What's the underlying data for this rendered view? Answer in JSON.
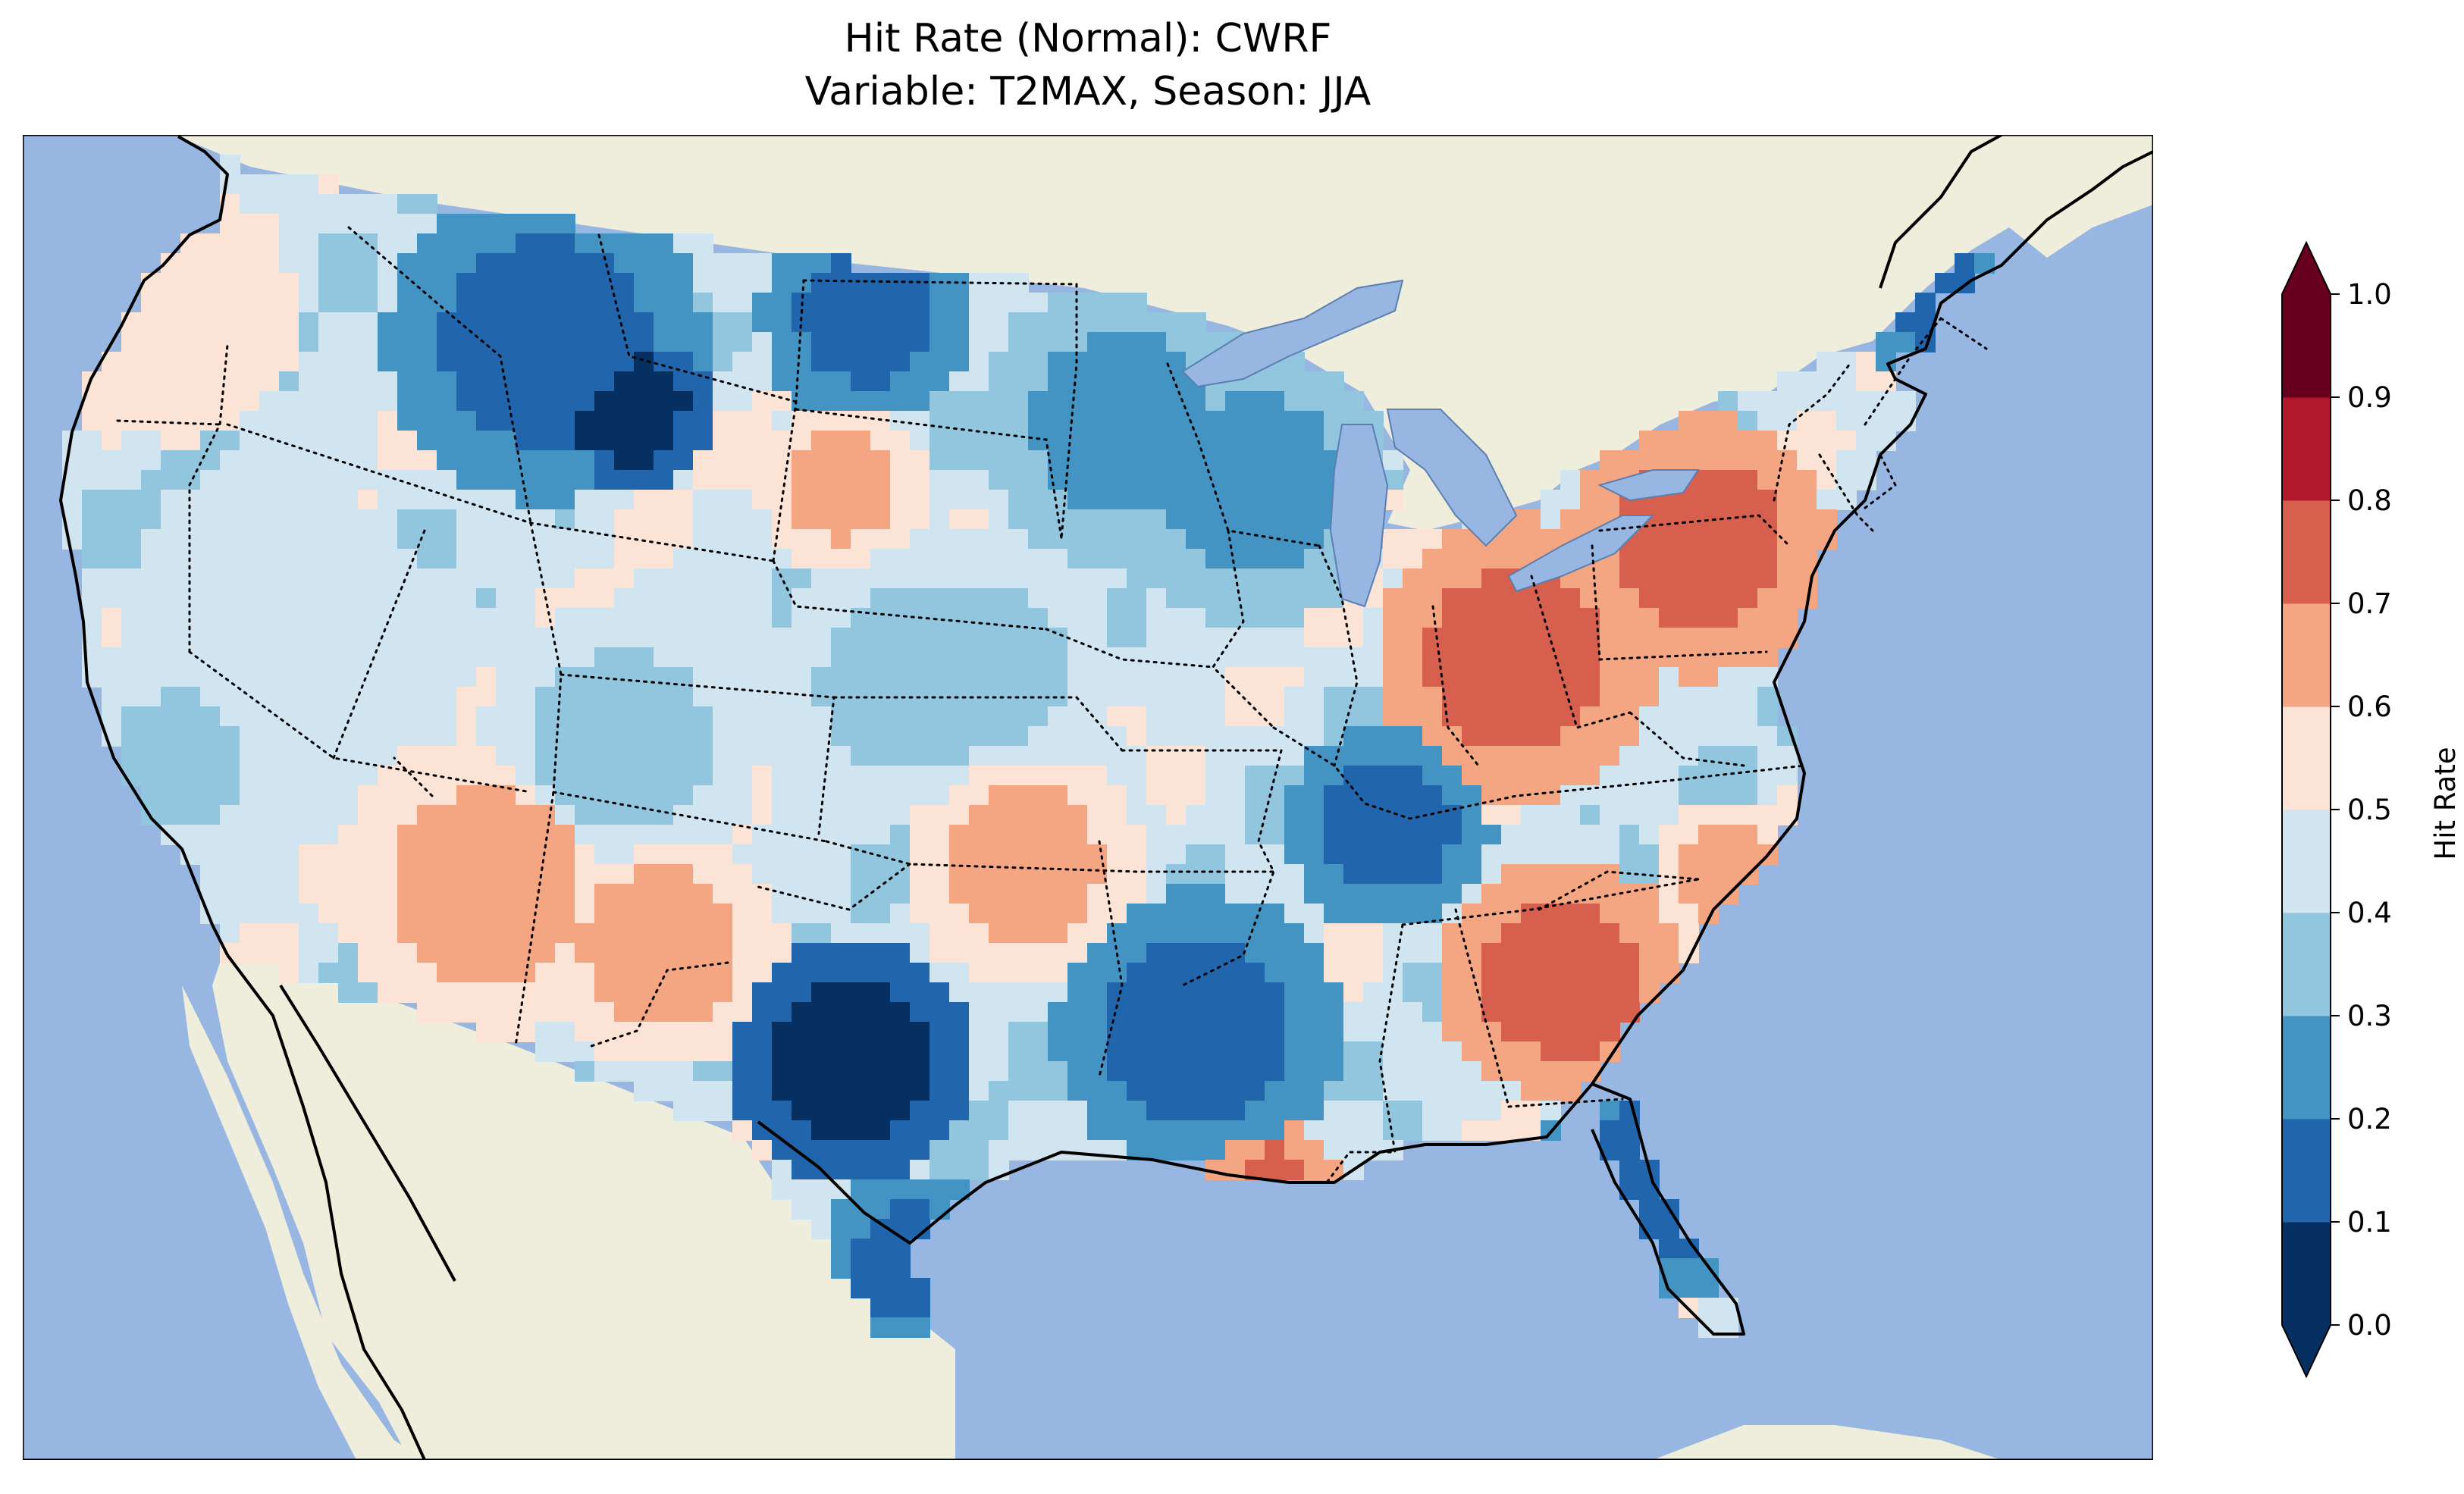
{
  "title_line1": "Hit Rate (Normal): CWRF",
  "title_line2": "Variable: T2MAX, Season: JJA",
  "colors": {
    "ocean": "#97b6e1",
    "land": "#efeddb",
    "lakes": "#97b6e1",
    "coast": "#000000"
  },
  "colorbar": {
    "label": "Hit Rate",
    "ticks": [
      "0.0",
      "0.1",
      "0.2",
      "0.3",
      "0.4",
      "0.5",
      "0.6",
      "0.7",
      "0.8",
      "0.9",
      "1.0"
    ],
    "bin_colors": [
      "#053061",
      "#2166ac",
      "#4393c3",
      "#92c5de",
      "#d1e5f0",
      "#fbe3d6",
      "#f4a582",
      "#d6604d",
      "#b2182b",
      "#67001f"
    ],
    "extend": "both"
  },
  "map_field": {
    "variable": "T2MAX",
    "season": "JJA",
    "regions": [
      {
        "name": "Pacific Northwest coast",
        "bin": 5
      },
      {
        "name": "Idaho / western Montana",
        "bin": 1
      },
      {
        "name": "northern Montana",
        "bin": 0
      },
      {
        "name": "North Dakota",
        "bin": 1
      },
      {
        "name": "western South Dakota",
        "bin": 6
      },
      {
        "name": "Minnesota",
        "bin": 2
      },
      {
        "name": "Wisconsin / Upper Michigan",
        "bin": 2
      },
      {
        "name": "Nevada",
        "bin": 4
      },
      {
        "name": "Utah",
        "bin": 3
      },
      {
        "name": "Colorado",
        "bin": 3
      },
      {
        "name": "Arizona",
        "bin": 6
      },
      {
        "name": "New Mexico",
        "bin": 6
      },
      {
        "name": "western Texas / eastern New Mexico",
        "bin": 0
      },
      {
        "name": "south Texas",
        "bin": 1
      },
      {
        "name": "Kansas",
        "bin": 3
      },
      {
        "name": "Oklahoma",
        "bin": 6
      },
      {
        "name": "Arkansas / Louisiana",
        "bin": 1
      },
      {
        "name": "south Louisiana coast",
        "bin": 7
      },
      {
        "name": "Indiana / Ohio",
        "bin": 7
      },
      {
        "name": "Pennsylvania / New York",
        "bin": 7
      },
      {
        "name": "Kentucky / Tennessee",
        "bin": 1
      },
      {
        "name": "Georgia / South Carolina",
        "bin": 7
      },
      {
        "name": "North Carolina coast",
        "bin": 6
      },
      {
        "name": "Florida",
        "bin": 1
      },
      {
        "name": "Maine",
        "bin": 1
      },
      {
        "name": "California valley",
        "bin": 3
      }
    ]
  }
}
